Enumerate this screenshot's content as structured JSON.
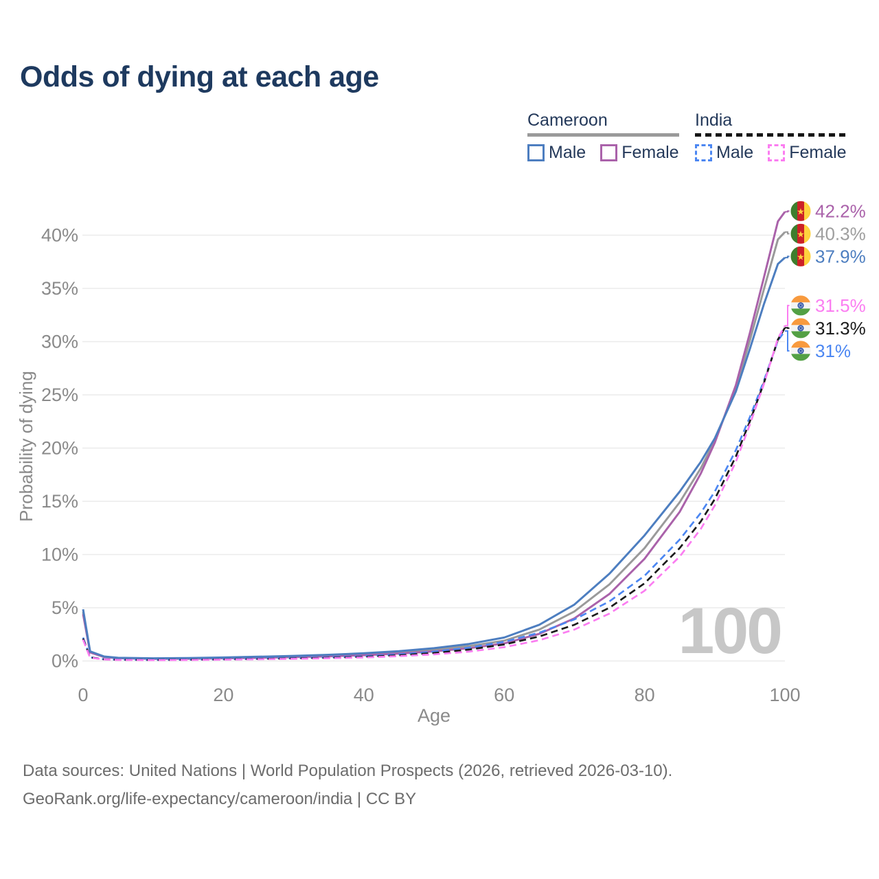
{
  "title": "Odds of dying at each age",
  "legend": {
    "cameroon": {
      "label": "Cameroon",
      "male_label": "Male",
      "female_label": "Female"
    },
    "india": {
      "label": "India",
      "male_label": "Male",
      "female_label": "Female"
    }
  },
  "watermark": "100",
  "footer": {
    "line1": "Data sources: United Nations | World Population Prospects (2026, retrieved 2026-03-10).",
    "line2": "GeoRank.org/life-expectancy/cameroon/india | CC BY"
  },
  "colors": {
    "title_text": "#1e3a5f",
    "legend_text": "#24395a",
    "axis_text": "#8a8a8a",
    "gridline": "#ebebeb",
    "watermark": "#c7c7c7",
    "footer_text": "#6c6c6c",
    "cameroon_male": "#4d7ec0",
    "cameroon_all": "#9a9a9a",
    "cameroon_female": "#aa62aa",
    "india_male": "#4c87f2",
    "india_all": "#1b1b1b",
    "india_female": "#fb7df1"
  },
  "flags": {
    "cameroon": {
      "green": "#3e7e2d",
      "red": "#cc2127",
      "yellow": "#fed23e",
      "star": "#fed23e"
    },
    "india": {
      "saffron": "#f89a3e",
      "white": "#f4f4f4",
      "green": "#53a044",
      "navy": "#2f54a8"
    }
  },
  "chart_data": {
    "type": "line",
    "title": "Odds of dying at each age",
    "xlabel": "Age",
    "ylabel": "Probability of dying",
    "xlim": [
      0,
      100
    ],
    "ylim_percent": [
      0,
      44
    ],
    "grid": "horizontal-only",
    "legend_position": "top-right",
    "x_ticks": [
      0,
      20,
      40,
      60,
      80,
      100
    ],
    "y_ticks": [
      {
        "value": 0,
        "label": "0%"
      },
      {
        "value": 5,
        "label": "5%"
      },
      {
        "value": 10,
        "label": "10%"
      },
      {
        "value": 15,
        "label": "15%"
      },
      {
        "value": 20,
        "label": "20%"
      },
      {
        "value": 25,
        "label": "25%"
      },
      {
        "value": 30,
        "label": "30%"
      },
      {
        "value": 35,
        "label": "35%"
      },
      {
        "value": 40,
        "label": "40%"
      }
    ],
    "x": [
      0,
      1,
      3,
      5,
      10,
      15,
      20,
      25,
      30,
      35,
      40,
      45,
      50,
      55,
      60,
      65,
      70,
      75,
      80,
      85,
      88,
      90,
      93,
      95,
      97,
      99,
      100
    ],
    "series": [
      {
        "id": "cameroon-all",
        "name": "Cameroon (both sexes)",
        "country": "cameroon",
        "color": "#9a9a9a",
        "label_color": "#9e9e9e",
        "dashed": false,
        "end_label": "40.3%",
        "end_value": 40.3,
        "values": [
          4.6,
          0.85,
          0.4,
          0.28,
          0.22,
          0.24,
          0.29,
          0.35,
          0.42,
          0.51,
          0.63,
          0.8,
          1.05,
          1.4,
          1.9,
          2.95,
          4.65,
          7.2,
          10.6,
          14.9,
          18.1,
          20.7,
          25.6,
          30.1,
          34.9,
          39.6,
          40.3
        ]
      },
      {
        "id": "cameroon-female",
        "name": "Cameroon Female",
        "country": "cameroon",
        "color": "#aa62aa",
        "label_color": "#aa62aa",
        "dashed": false,
        "end_label": "42.2%",
        "end_value": 42.2,
        "values": [
          4.4,
          0.8,
          0.37,
          0.26,
          0.2,
          0.21,
          0.25,
          0.3,
          0.36,
          0.44,
          0.54,
          0.69,
          0.9,
          1.2,
          1.65,
          2.55,
          4.0,
          6.3,
          9.6,
          14.0,
          17.6,
          20.5,
          25.9,
          30.8,
          36.0,
          41.3,
          42.2
        ]
      },
      {
        "id": "cameroon-male",
        "name": "Cameroon Male",
        "country": "cameroon",
        "color": "#4d7ec0",
        "label_color": "#4d7ec0",
        "dashed": false,
        "end_label": "37.9%",
        "end_value": 37.9,
        "values": [
          4.85,
          0.9,
          0.42,
          0.3,
          0.25,
          0.27,
          0.33,
          0.4,
          0.48,
          0.58,
          0.72,
          0.92,
          1.2,
          1.6,
          2.2,
          3.4,
          5.3,
          8.2,
          11.8,
          15.9,
          18.7,
          20.9,
          25.3,
          29.3,
          33.5,
          37.3,
          37.9
        ]
      },
      {
        "id": "india-male",
        "name": "India Male",
        "country": "india",
        "color": "#4c87f2",
        "label_color": "#4c87f2",
        "dashed": true,
        "end_label": "31%",
        "end_value": 31.0,
        "values": [
          2.2,
          0.35,
          0.16,
          0.12,
          0.1,
          0.13,
          0.17,
          0.22,
          0.27,
          0.34,
          0.45,
          0.62,
          0.88,
          1.25,
          1.8,
          2.65,
          3.9,
          5.6,
          8.0,
          11.4,
          13.9,
          15.9,
          19.8,
          22.9,
          26.3,
          30.1,
          31.0
        ]
      },
      {
        "id": "india-all",
        "name": "India (both sexes)",
        "country": "india",
        "color": "#1b1b1b",
        "label_color": "#1b1b1b",
        "dashed": true,
        "end_label": "31.3%",
        "end_value": 31.3,
        "values": [
          2.1,
          0.33,
          0.15,
          0.11,
          0.09,
          0.11,
          0.15,
          0.19,
          0.24,
          0.3,
          0.39,
          0.53,
          0.75,
          1.07,
          1.55,
          2.3,
          3.4,
          5.0,
          7.3,
          10.6,
          13.1,
          15.2,
          19.2,
          22.5,
          26.1,
          30.2,
          31.3
        ]
      },
      {
        "id": "india-female",
        "name": "India Female",
        "country": "india",
        "color": "#fb7df1",
        "label_color": "#fb7df1",
        "dashed": true,
        "end_label": "31.5%",
        "end_value": 31.5,
        "values": [
          2.0,
          0.31,
          0.14,
          0.1,
          0.08,
          0.09,
          0.12,
          0.16,
          0.2,
          0.26,
          0.33,
          0.45,
          0.62,
          0.88,
          1.3,
          1.95,
          2.95,
          4.45,
          6.6,
          9.8,
          12.4,
          14.6,
          18.7,
          22.2,
          26.0,
          30.3,
          31.5
        ]
      }
    ]
  }
}
